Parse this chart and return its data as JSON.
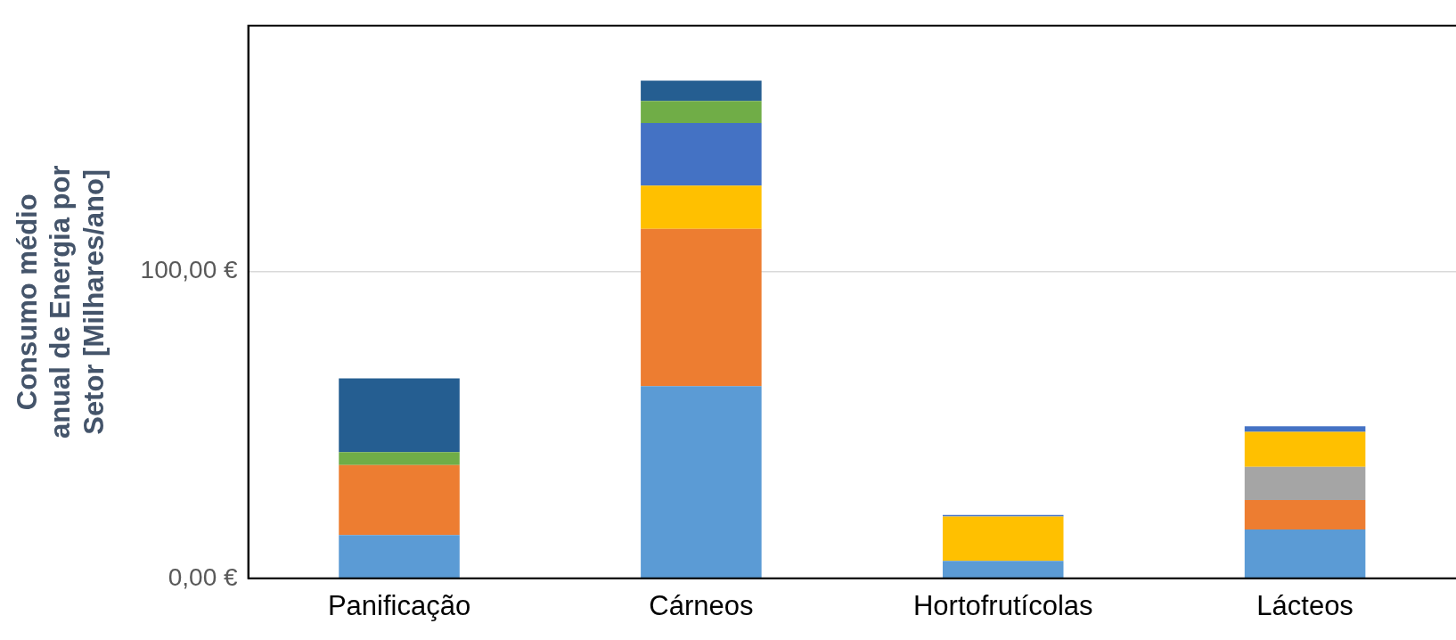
{
  "chart_data": {
    "type": "bar",
    "stacked": true,
    "ylabel": "Consumo médio anual de Energia por Setor [Milhares/ano]",
    "categories": [
      "Panificação",
      "Cárneos",
      "Hortofrutícolas",
      "Lácteos"
    ],
    "series": [
      {
        "color": "#5b9bd5",
        "values": [
          14.1,
          62.6,
          5.7,
          15.9
        ]
      },
      {
        "color": "#ed7d31",
        "values": [
          22.8,
          51.2,
          null,
          9.6
        ]
      },
      {
        "color": "#a5a5a5",
        "values": [
          null,
          null,
          null,
          10.8
        ]
      },
      {
        "color": "#ffc000",
        "values": [
          null,
          14.1,
          14.4,
          11.4
        ]
      },
      {
        "color": "#4472c4",
        "values": [
          null,
          20.4,
          0.5,
          1.8
        ]
      },
      {
        "color": "#70ad47",
        "values": [
          4.2,
          7.2,
          null,
          null
        ]
      },
      {
        "color": "#255e91",
        "values": [
          24.0,
          6.6,
          null,
          null
        ]
      }
    ],
    "ylim": [
      0,
      180
    ],
    "yticks": [
      {
        "value": 0,
        "label": "0,00 €"
      },
      {
        "value": 100,
        "label": "100,00 €"
      }
    ],
    "grid": "y",
    "legend": false
  }
}
